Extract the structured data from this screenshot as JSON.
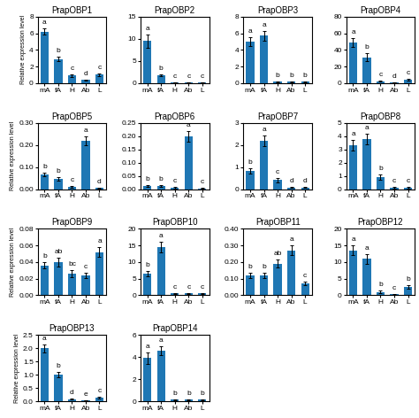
{
  "chart_data": [
    {
      "type": "bar",
      "title": "PrapOBP1",
      "ylabel": "Relative expression level",
      "categories": [
        "mA",
        "fA",
        "H",
        "Ab",
        "L"
      ],
      "values": [
        6.2,
        2.9,
        0.9,
        0.35,
        1.0
      ],
      "errors": [
        0.35,
        0.25,
        0.15,
        0.1,
        0.2
      ],
      "letters": [
        "a",
        "b",
        "c",
        "d",
        "c"
      ],
      "ylim": [
        0,
        8
      ],
      "yticks": [
        0,
        2,
        4,
        6,
        8
      ]
    },
    {
      "type": "bar",
      "title": "PrapOBP2",
      "categories": [
        "mA",
        "fA",
        "H",
        "Ab",
        "L"
      ],
      "values": [
        9.5,
        1.8,
        0.15,
        0.15,
        0.15
      ],
      "errors": [
        1.5,
        0.2,
        0.05,
        0.05,
        0.05
      ],
      "letters": [
        "a",
        "b",
        "c",
        "c",
        "c"
      ],
      "ylim": [
        0,
        15
      ],
      "yticks": [
        0,
        5,
        10,
        15
      ]
    },
    {
      "type": "bar",
      "title": "PrapOBP3",
      "categories": [
        "mA",
        "fA",
        "H",
        "Ab",
        "L"
      ],
      "values": [
        5.0,
        5.7,
        0.15,
        0.15,
        0.15
      ],
      "errors": [
        0.5,
        0.6,
        0.05,
        0.05,
        0.05
      ],
      "letters": [
        "a",
        "a",
        "b",
        "b",
        "b"
      ],
      "ylim": [
        0,
        8
      ],
      "yticks": [
        0,
        2,
        4,
        6,
        8
      ]
    },
    {
      "type": "bar",
      "title": "PrapOBP4",
      "categories": [
        "mA",
        "fA",
        "H",
        "Ab",
        "L"
      ],
      "values": [
        49.0,
        31.0,
        2.0,
        0.5,
        4.0
      ],
      "errors": [
        5.0,
        5.0,
        0.5,
        0.2,
        1.0
      ],
      "letters": [
        "a",
        "b",
        "c",
        "d",
        "c"
      ],
      "ylim": [
        0,
        80
      ],
      "yticks": [
        0,
        20,
        40,
        60,
        80
      ]
    },
    {
      "type": "bar",
      "title": "PrapOBP5",
      "ylabel": "Relative expression level",
      "categories": [
        "mA",
        "fA",
        "H",
        "Ab",
        "L"
      ],
      "values": [
        0.065,
        0.048,
        0.01,
        0.22,
        0.005
      ],
      "errors": [
        0.008,
        0.008,
        0.003,
        0.02,
        0.002
      ],
      "letters": [
        "b",
        "b",
        "c",
        "a",
        "d"
      ],
      "ylim": [
        0,
        0.3
      ],
      "yticks": [
        {
          "value": 0.0,
          "label": "0.00"
        },
        {
          "value": 0.1,
          "label": "0.10"
        },
        {
          "value": 0.2,
          "label": "0.20"
        },
        {
          "value": 0.3,
          "label": "0.30"
        }
      ]
    },
    {
      "type": "bar",
      "title": "PrapOBP6",
      "categories": [
        "mA",
        "fA",
        "H",
        "Ab",
        "L"
      ],
      "values": [
        0.012,
        0.012,
        0.005,
        0.2,
        0.003
      ],
      "errors": [
        0.003,
        0.003,
        0.002,
        0.02,
        0.001
      ],
      "letters": [
        "b",
        "b",
        "c",
        "a",
        "c"
      ],
      "ylim": [
        0,
        0.25
      ],
      "yticks": [
        {
          "value": 0.0,
          "label": "0.00"
        },
        0.05,
        {
          "value": 0.1,
          "label": "0.10"
        },
        0.15,
        {
          "value": 0.2,
          "label": "0.20"
        },
        0.25
      ]
    },
    {
      "type": "bar",
      "title": "PrapOBP7",
      "categories": [
        "mA",
        "fA",
        "H",
        "Ab",
        "L"
      ],
      "values": [
        0.82,
        2.18,
        0.42,
        0.08,
        0.08
      ],
      "errors": [
        0.12,
        0.25,
        0.1,
        0.02,
        0.02
      ],
      "letters": [
        "b",
        "a",
        "c",
        "d",
        "d"
      ],
      "ylim": [
        0,
        3
      ],
      "yticks": [
        0,
        1,
        2,
        3
      ]
    },
    {
      "type": "bar",
      "title": "PrapOBP8",
      "categories": [
        "mA",
        "fA",
        "H",
        "Ab",
        "L"
      ],
      "values": [
        3.3,
        3.8,
        0.9,
        0.1,
        0.1
      ],
      "errors": [
        0.4,
        0.4,
        0.2,
        0.05,
        0.05
      ],
      "letters": [
        "a",
        "a",
        "b",
        "c",
        "c"
      ],
      "ylim": [
        0,
        5
      ],
      "yticks": [
        0,
        1,
        2,
        3,
        4,
        5
      ]
    },
    {
      "type": "bar",
      "title": "PrapOBP9",
      "ylabel": "Relative expression level",
      "categories": [
        "mA",
        "fA",
        "H",
        "Ab",
        "L"
      ],
      "values": [
        0.036,
        0.04,
        0.026,
        0.024,
        0.052
      ],
      "errors": [
        0.004,
        0.005,
        0.004,
        0.003,
        0.006
      ],
      "letters": [
        "b",
        "ab",
        "bc",
        "c",
        "a"
      ],
      "ylim": [
        0,
        0.08
      ],
      "yticks": [
        {
          "value": 0.0,
          "label": "0.00"
        },
        0.02,
        {
          "value": 0.04,
          "label": "0.04"
        },
        {
          "value": 0.06,
          "label": "0.06"
        },
        {
          "value": 0.08,
          "label": "0.08"
        }
      ]
    },
    {
      "type": "bar",
      "title": "PrapOBP10",
      "categories": [
        "mA",
        "fA",
        "H",
        "Ab",
        "L"
      ],
      "values": [
        6.5,
        14.5,
        0.5,
        0.5,
        0.5
      ],
      "errors": [
        0.8,
        1.5,
        0.1,
        0.1,
        0.1
      ],
      "letters": [
        "b",
        "a",
        "c",
        "c",
        "c"
      ],
      "ylim": [
        0,
        20
      ],
      "yticks": [
        0,
        5,
        10,
        15,
        20
      ]
    },
    {
      "type": "bar",
      "title": "PrapOBP11",
      "categories": [
        "mA",
        "fA",
        "H",
        "Ab",
        "L"
      ],
      "values": [
        0.12,
        0.12,
        0.19,
        0.27,
        0.07
      ],
      "errors": [
        0.015,
        0.015,
        0.025,
        0.03,
        0.01
      ],
      "letters": [
        "b",
        "b",
        "ab",
        "a",
        "c"
      ],
      "ylim": [
        0,
        0.4
      ],
      "yticks": [
        {
          "value": 0.0,
          "label": "0.00"
        },
        {
          "value": 0.1,
          "label": "0.10"
        },
        {
          "value": 0.2,
          "label": "0.20"
        },
        {
          "value": 0.3,
          "label": "0.30"
        },
        {
          "value": 0.4,
          "label": "0.40"
        }
      ]
    },
    {
      "type": "bar",
      "title": "PrapOBP12",
      "categories": [
        "mA",
        "fA",
        "H",
        "Ab",
        "L"
      ],
      "values": [
        13.5,
        11.0,
        1.0,
        0.3,
        2.5
      ],
      "errors": [
        1.5,
        1.5,
        0.3,
        0.1,
        0.5
      ],
      "letters": [
        "a",
        "a",
        "b",
        "c",
        "b"
      ],
      "ylim": [
        0,
        20
      ],
      "yticks": [
        0,
        5,
        10,
        15,
        20
      ]
    },
    {
      "type": "bar",
      "title": "PrapOBP13",
      "ylabel": "Relative expression level",
      "categories": [
        "mA",
        "fA",
        "H",
        "Ab",
        "L"
      ],
      "values": [
        2.0,
        1.0,
        0.08,
        0.04,
        0.15
      ],
      "errors": [
        0.15,
        0.1,
        0.02,
        0.01,
        0.03
      ],
      "letters": [
        "a",
        "b",
        "d",
        "e",
        "c"
      ],
      "ylim": [
        0,
        2.5
      ],
      "yticks": [
        {
          "value": 0,
          "label": "0.0"
        },
        0.5,
        {
          "value": 1,
          "label": "1.0"
        },
        1.5,
        {
          "value": 2,
          "label": "2.0"
        },
        2.5
      ]
    },
    {
      "type": "bar",
      "title": "PrapOBP14",
      "categories": [
        "mA",
        "fA",
        "H",
        "Ab",
        "L"
      ],
      "values": [
        3.9,
        4.6,
        0.15,
        0.15,
        0.15
      ],
      "errors": [
        0.5,
        0.4,
        0.05,
        0.05,
        0.05
      ],
      "letters": [
        "a",
        "a",
        "b",
        "b",
        "b"
      ],
      "ylim": [
        0,
        6
      ],
      "yticks": [
        0,
        2,
        4,
        6
      ]
    }
  ]
}
